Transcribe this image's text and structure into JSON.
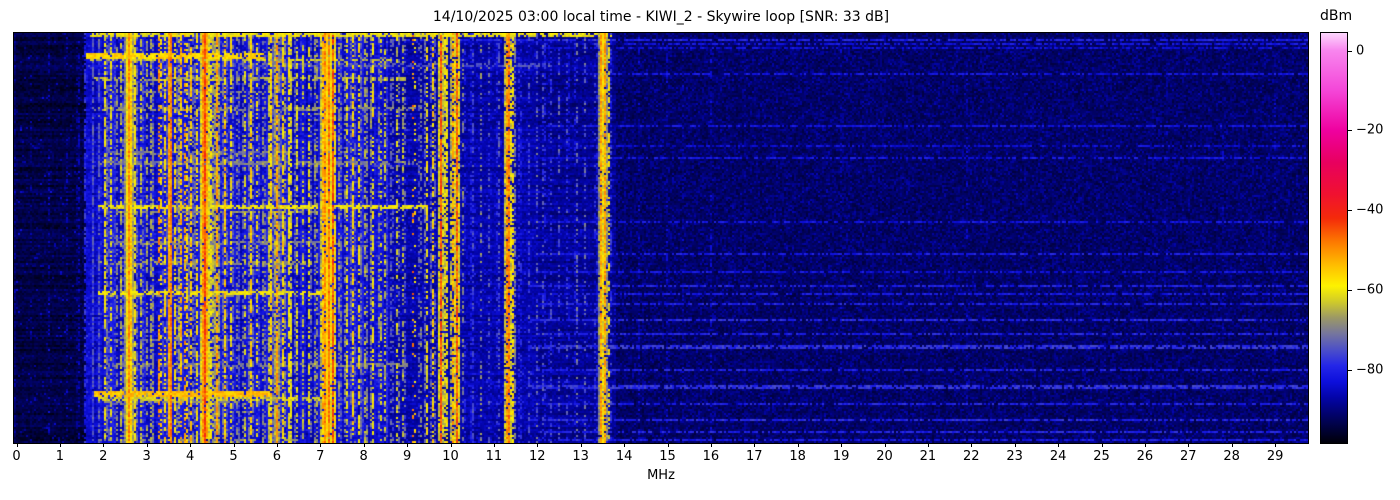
{
  "title": "14/10/2025 03:00 local time - KIWI_2 - Skywire loop [SNR: 33 dB]",
  "axes": {
    "xlabel": "MHz",
    "x_ticks": [
      "0",
      "1",
      "2",
      "3",
      "4",
      "5",
      "6",
      "7",
      "8",
      "9",
      "10",
      "11",
      "12",
      "13",
      "14",
      "15",
      "16",
      "17",
      "18",
      "19",
      "20",
      "21",
      "22",
      "23",
      "24",
      "25",
      "26",
      "27",
      "28",
      "29"
    ],
    "y_ticks": []
  },
  "colorbar": {
    "label": "dBm",
    "tick_labels": [
      "0",
      "−20",
      "−40",
      "−60",
      "−80"
    ],
    "tick_values": [
      0,
      -20,
      -40,
      -60,
      -80
    ],
    "vmax": 4.44,
    "vmin": -98.4
  },
  "chart_data": {
    "type": "heatmap",
    "subtype": "radio-spectrogram-waterfall",
    "title": "14/10/2025 03:00 local time - KIWI_2 - Skywire loop [SNR: 33 dB]",
    "xlabel": "MHz",
    "x_range_mhz": [
      0,
      29.76
    ],
    "x_tick_step_mhz": 1,
    "y_axis_note": "time (no tick labels shown)",
    "value_unit": "dBm",
    "value_range": [
      -98.4,
      4.44
    ],
    "colorbar_ticks_dbm": [
      0,
      -20,
      -40,
      -60,
      -80
    ],
    "colormap_stops": [
      [
        4.44,
        "#fdd7fd"
      ],
      [
        0,
        "#f885ee"
      ],
      [
        -10,
        "#f446d8"
      ],
      [
        -20,
        "#ef019f"
      ],
      [
        -28,
        "#e8005f"
      ],
      [
        -36,
        "#f01130"
      ],
      [
        -42,
        "#f42a0a"
      ],
      [
        -48,
        "#fd7a00"
      ],
      [
        -54,
        "#ffc000"
      ],
      [
        -59,
        "#fdf200"
      ],
      [
        -63,
        "#cfca2a"
      ],
      [
        -67,
        "#9b9866"
      ],
      [
        -71,
        "#75759e"
      ],
      [
        -75,
        "#4c4fc8"
      ],
      [
        -79,
        "#2426e8"
      ],
      [
        -83,
        "#0d0fdc"
      ],
      [
        -87,
        "#0304a8"
      ],
      [
        -92,
        "#010260"
      ],
      [
        -98.4,
        "#000008"
      ]
    ],
    "noise_regions": [
      [
        0.0,
        1.6,
        -96.0,
        0.06,
        9
      ],
      [
        1.6,
        8.6,
        -85.5,
        0.12,
        7
      ],
      [
        8.6,
        12.0,
        -89.0,
        0.1,
        7
      ],
      [
        12.0,
        13.8,
        -90.5,
        0.08,
        6
      ],
      [
        13.8,
        29.8,
        -94.5,
        0.5,
        5
      ]
    ],
    "signal_bands": [
      [
        0.35,
        0.02,
        -86,
        0.25
      ],
      [
        0.75,
        0.02,
        -86,
        0.25
      ],
      [
        1.15,
        0.02,
        -85,
        0.3
      ],
      [
        1.42,
        0.02,
        -82,
        0.5
      ],
      [
        1.58,
        0.02,
        -80,
        0.6
      ],
      [
        1.75,
        0.02,
        -73,
        0.85
      ],
      [
        1.9,
        0.02,
        -74,
        0.7
      ],
      [
        2.05,
        0.02,
        -58,
        0.7
      ],
      [
        2.17,
        0.02,
        -61,
        0.6
      ],
      [
        2.3,
        0.02,
        -65,
        0.5
      ],
      [
        2.42,
        0.02,
        -62,
        0.55
      ],
      [
        2.6,
        0.05,
        -50,
        1.0
      ],
      [
        2.74,
        0.02,
        -58,
        0.7
      ],
      [
        2.88,
        0.02,
        -62,
        0.55
      ],
      [
        3.0,
        0.02,
        -66,
        0.5
      ],
      [
        3.12,
        0.02,
        -60,
        0.55
      ],
      [
        3.3,
        0.025,
        -46,
        0.45
      ],
      [
        3.42,
        0.02,
        -58,
        0.6
      ],
      [
        3.54,
        0.025,
        -43,
        0.95
      ],
      [
        3.66,
        0.02,
        -56,
        0.6
      ],
      [
        3.78,
        0.02,
        -52,
        0.7
      ],
      [
        3.9,
        0.02,
        -47,
        0.5
      ],
      [
        4.02,
        0.02,
        -55,
        0.7
      ],
      [
        4.15,
        0.02,
        -58,
        0.6
      ],
      [
        4.34,
        0.05,
        -44,
        0.95
      ],
      [
        4.5,
        0.02,
        -55,
        0.6
      ],
      [
        4.62,
        0.03,
        -52,
        0.8
      ],
      [
        4.8,
        0.025,
        -55,
        0.75
      ],
      [
        4.95,
        0.02,
        -58,
        0.6
      ],
      [
        5.1,
        0.02,
        -64,
        0.5
      ],
      [
        5.25,
        0.02,
        -60,
        0.5
      ],
      [
        5.4,
        0.03,
        -56,
        0.7
      ],
      [
        5.55,
        0.02,
        -60,
        0.5
      ],
      [
        5.7,
        0.02,
        -62,
        0.5
      ],
      [
        5.85,
        0.03,
        -54,
        0.8
      ],
      [
        6.0,
        0.03,
        -52,
        0.85
      ],
      [
        6.15,
        0.03,
        -56,
        0.7
      ],
      [
        6.3,
        0.03,
        -55,
        0.75
      ],
      [
        6.45,
        0.02,
        -60,
        0.6
      ],
      [
        6.6,
        0.02,
        -64,
        0.5
      ],
      [
        6.75,
        0.02,
        -58,
        0.55
      ],
      [
        6.9,
        0.02,
        -60,
        0.5
      ],
      [
        7.1,
        0.06,
        -50,
        0.9
      ],
      [
        7.2,
        0.04,
        -48,
        0.95
      ],
      [
        7.3,
        0.02,
        -44,
        0.85
      ],
      [
        7.45,
        0.02,
        -62,
        0.5
      ],
      [
        7.6,
        0.025,
        -58,
        0.6
      ],
      [
        7.75,
        0.025,
        -56,
        0.65
      ],
      [
        7.9,
        0.025,
        -57,
        0.6
      ],
      [
        8.05,
        0.02,
        -60,
        0.55
      ],
      [
        8.2,
        0.025,
        -56,
        0.6
      ],
      [
        8.38,
        0.02,
        -58,
        0.4
      ],
      [
        8.5,
        0.02,
        -62,
        0.5
      ],
      [
        8.65,
        0.02,
        -66,
        0.45
      ],
      [
        8.78,
        0.02,
        -60,
        0.5
      ],
      [
        8.92,
        0.02,
        -62,
        0.45
      ],
      [
        9.15,
        0.02,
        -46,
        0.15
      ],
      [
        9.3,
        0.02,
        -64,
        0.4
      ],
      [
        9.45,
        0.02,
        -58,
        0.55
      ],
      [
        9.6,
        0.02,
        -56,
        0.6
      ],
      [
        9.78,
        0.02,
        -45,
        0.9
      ],
      [
        9.9,
        0.03,
        -55,
        0.7
      ],
      [
        10.05,
        0.03,
        -52,
        0.75
      ],
      [
        10.15,
        0.03,
        -46,
        0.9
      ],
      [
        10.3,
        0.02,
        -68,
        0.4
      ],
      [
        10.5,
        0.02,
        -72,
        0.5
      ],
      [
        10.7,
        0.02,
        -70,
        0.4
      ],
      [
        10.9,
        0.02,
        -72,
        0.4
      ],
      [
        11.1,
        0.02,
        -70,
        0.4
      ],
      [
        11.33,
        0.04,
        -46,
        0.9
      ],
      [
        11.45,
        0.02,
        -56,
        0.6
      ],
      [
        11.6,
        0.02,
        -72,
        0.4
      ],
      [
        11.8,
        0.02,
        -74,
        0.4
      ],
      [
        12.0,
        0.02,
        -73,
        0.4
      ],
      [
        12.15,
        0.02,
        -71,
        0.4
      ],
      [
        12.3,
        0.02,
        -74,
        0.4
      ],
      [
        12.5,
        0.02,
        -75,
        0.35
      ],
      [
        12.7,
        0.02,
        -73,
        0.35
      ],
      [
        12.9,
        0.02,
        -70,
        0.4
      ],
      [
        13.1,
        0.02,
        -74,
        0.35
      ],
      [
        13.35,
        0.02,
        -72,
        0.35
      ],
      [
        13.48,
        0.03,
        -50,
        0.95
      ],
      [
        13.56,
        0.03,
        -52,
        0.9
      ],
      [
        13.65,
        0.02,
        -60,
        0.5
      ],
      [
        14.0,
        0.02,
        -85,
        0.5
      ],
      [
        14.35,
        0.02,
        -86,
        0.5
      ],
      [
        15.0,
        0.02,
        -85,
        0.5
      ],
      [
        15.35,
        0.02,
        -87,
        0.4
      ],
      [
        16.0,
        0.02,
        -86,
        0.4
      ],
      [
        16.8,
        0.02,
        -87,
        0.4
      ],
      [
        17.5,
        0.02,
        -87,
        0.35
      ],
      [
        18.1,
        0.02,
        -87,
        0.35
      ],
      [
        19.0,
        0.02,
        -88,
        0.3
      ],
      [
        20.0,
        0.02,
        -88,
        0.3
      ],
      [
        21.0,
        0.02,
        -88,
        0.3
      ],
      [
        21.9,
        0.02,
        -87,
        0.35
      ],
      [
        22.8,
        0.02,
        -88,
        0.3
      ],
      [
        24.0,
        0.02,
        -88,
        0.3
      ],
      [
        25.2,
        0.02,
        -88,
        0.3
      ],
      [
        26.5,
        0.02,
        -88,
        0.3
      ],
      [
        27.8,
        0.02,
        -88,
        0.3
      ],
      [
        29.0,
        0.02,
        -88,
        0.3
      ]
    ],
    "time_events": [
      [
        0,
        3,
        1.7,
        13.7,
        -60,
        0.7
      ],
      [
        20,
        5,
        1.6,
        5.7,
        -56,
        0.85
      ],
      [
        25,
        3,
        1.7,
        8.7,
        -63,
        0.65
      ],
      [
        30,
        3,
        5.0,
        12.3,
        -75,
        0.6
      ],
      [
        44,
        3,
        1.8,
        9.0,
        -66,
        0.55
      ],
      [
        58,
        2,
        2.0,
        6.0,
        -70,
        0.5
      ],
      [
        74,
        4,
        1.8,
        9.2,
        -69,
        0.55
      ],
      [
        118,
        3,
        2.0,
        6.5,
        -71,
        0.5
      ],
      [
        128,
        3,
        1.9,
        9.3,
        -70,
        0.5
      ],
      [
        172,
        4,
        1.9,
        9.5,
        -60,
        0.75
      ],
      [
        178,
        2,
        2.2,
        7.0,
        -68,
        0.5
      ],
      [
        208,
        3,
        2.0,
        7.5,
        -70,
        0.5
      ],
      [
        228,
        3,
        1.9,
        6.8,
        -67,
        0.55
      ],
      [
        257,
        4,
        1.9,
        7.2,
        -60,
        0.7
      ],
      [
        262,
        2,
        2.0,
        5.0,
        -68,
        0.5
      ],
      [
        305,
        3,
        2.0,
        6.0,
        -72,
        0.45
      ],
      [
        330,
        3,
        1.9,
        9.0,
        -70,
        0.5
      ],
      [
        358,
        5,
        1.8,
        5.9,
        -54,
        0.9
      ],
      [
        363,
        4,
        1.9,
        7.2,
        -63,
        0.65
      ],
      [
        368,
        2,
        2.0,
        5.2,
        -68,
        0.5
      ],
      [
        405,
        3,
        1.9,
        6.5,
        -68,
        0.5
      ],
      [
        5,
        2,
        8.6,
        29.8,
        -80,
        0.75
      ],
      [
        9,
        2,
        14,
        29.8,
        -82,
        0.65
      ],
      [
        14,
        2,
        12,
        29.8,
        -83,
        0.65
      ],
      [
        40,
        2,
        13,
        29.8,
        -82,
        0.65
      ],
      [
        92,
        2,
        12,
        29.8,
        -82,
        0.65
      ],
      [
        112,
        2,
        13,
        29.8,
        -83,
        0.6
      ],
      [
        124,
        2,
        12,
        29.8,
        -82,
        0.65
      ],
      [
        187,
        2,
        12,
        29.8,
        -82,
        0.65
      ],
      [
        219,
        2,
        12,
        29.8,
        -81,
        0.7
      ],
      [
        237,
        2,
        12,
        29.8,
        -82,
        0.65
      ],
      [
        252,
        2,
        11.8,
        29.8,
        -80,
        0.7
      ],
      [
        260,
        2,
        12,
        29.8,
        -81,
        0.7
      ],
      [
        270,
        2,
        12,
        29.8,
        -80,
        0.7
      ],
      [
        285,
        2,
        11.8,
        29.8,
        -79,
        0.75
      ],
      [
        300,
        2,
        12,
        29.8,
        -80,
        0.7
      ],
      [
        312,
        3,
        11.8,
        29.8,
        -78,
        0.75
      ],
      [
        335,
        2,
        12,
        29.8,
        -80,
        0.7
      ],
      [
        352,
        3,
        11.8,
        29.8,
        -78,
        0.75
      ],
      [
        370,
        2,
        12,
        29.8,
        -80,
        0.7
      ],
      [
        385,
        3,
        11.8,
        29.8,
        -79,
        0.75
      ],
      [
        398,
        2,
        12,
        29.8,
        -80,
        0.7
      ],
      [
        406,
        2,
        12,
        29.8,
        -81,
        0.7
      ]
    ],
    "render_seed": 1337
  }
}
